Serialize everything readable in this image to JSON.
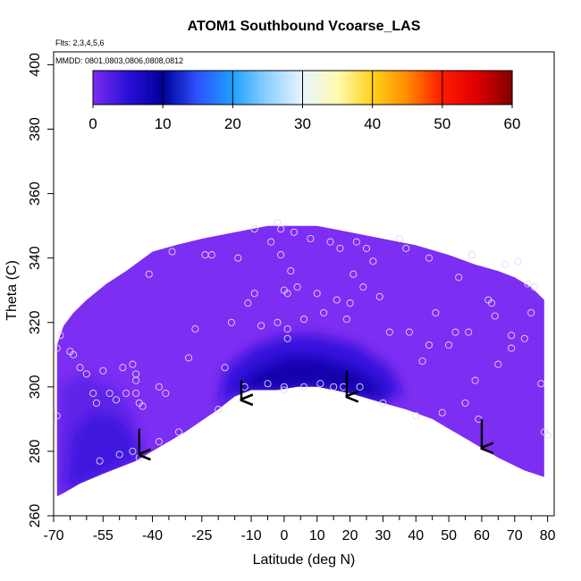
{
  "chart_data": {
    "type": "heatmap",
    "title": "ATOM1 Southbound Vcoarse_LAS",
    "subtitle_flights": "Flts: 2,3,4,5,6",
    "subtitle_dates": "MMDD: 0801,0803,0806,0808,0812",
    "xlabel": "Latitude (deg N)",
    "ylabel": "Theta (C)",
    "xlim": [
      -70,
      82
    ],
    "ylim": [
      260,
      404
    ],
    "x_tick_labels": [
      "-70",
      "-55",
      "-40",
      "-25",
      "-10",
      "0",
      "10",
      "20",
      "30",
      "40",
      "50",
      "60",
      "70",
      "80"
    ],
    "x_ticks": [
      -70,
      -55,
      -40,
      -25,
      -10,
      0,
      10,
      20,
      30,
      40,
      50,
      60,
      70,
      80
    ],
    "x_minor_ticks": [
      -65,
      -60,
      -50,
      -45,
      -35,
      -30,
      -20,
      -15,
      -5,
      5,
      15,
      25,
      35,
      45,
      55,
      65,
      75
    ],
    "y_tick_labels": [
      "260",
      "280",
      "300",
      "320",
      "340",
      "360",
      "380",
      "400"
    ],
    "y_ticks": [
      260,
      280,
      300,
      320,
      340,
      360,
      380,
      400
    ],
    "colorbar": {
      "range": [
        0,
        60
      ],
      "tick_labels": [
        "0",
        "10",
        "20",
        "30",
        "40",
        "50",
        "60"
      ],
      "ticks": [
        0,
        10,
        20,
        30,
        40,
        50,
        60
      ],
      "stops": [
        {
          "v": 0,
          "c": "#7a2cf0"
        },
        {
          "v": 5,
          "c": "#2a10d8"
        },
        {
          "v": 10,
          "c": "#000099"
        },
        {
          "v": 15,
          "c": "#2f52ff"
        },
        {
          "v": 20,
          "c": "#1ea0ff"
        },
        {
          "v": 25,
          "c": "#8fd0ff"
        },
        {
          "v": 30,
          "c": "#e8f5ff"
        },
        {
          "v": 35,
          "c": "#fffab0"
        },
        {
          "v": 40,
          "c": "#ffd21a"
        },
        {
          "v": 45,
          "c": "#ff8a00"
        },
        {
          "v": 50,
          "c": "#ff1a00"
        },
        {
          "v": 55,
          "c": "#dd0000"
        },
        {
          "v": 60,
          "c": "#800000"
        }
      ]
    },
    "colors": {
      "field": "#7c2ef2",
      "field_dark": "#1a0aa8",
      "field_mid": "#4a1de0",
      "marker_stroke": "#e6d6ff",
      "arrow": "#000000",
      "frame": "#000000"
    },
    "domain": {
      "top": [
        [
          -69,
          313
        ],
        [
          -67,
          319
        ],
        [
          -64,
          323
        ],
        [
          -60,
          327
        ],
        [
          -54,
          332
        ],
        [
          -48,
          336
        ],
        [
          -40,
          342
        ],
        [
          -33,
          344
        ],
        [
          -25,
          346
        ],
        [
          -15,
          348
        ],
        [
          -5,
          350
        ],
        [
          0,
          350
        ],
        [
          10,
          350
        ],
        [
          20,
          348
        ],
        [
          30,
          346
        ],
        [
          40,
          344
        ],
        [
          50,
          341
        ],
        [
          58,
          338
        ],
        [
          65,
          336
        ],
        [
          70,
          334
        ],
        [
          75,
          331
        ],
        [
          79,
          327
        ]
      ],
      "bottom": [
        [
          79,
          272
        ],
        [
          73,
          274
        ],
        [
          65,
          278
        ],
        [
          60,
          281
        ],
        [
          50,
          287
        ],
        [
          45,
          290
        ],
        [
          37,
          293
        ],
        [
          30,
          295
        ],
        [
          20,
          298
        ],
        [
          10,
          300
        ],
        [
          4,
          300
        ],
        [
          -2,
          299
        ],
        [
          -10,
          299
        ],
        [
          -15,
          297
        ],
        [
          -20,
          293
        ],
        [
          -30,
          286
        ],
        [
          -40,
          280
        ],
        [
          -45,
          277
        ],
        [
          -55,
          273
        ],
        [
          -62,
          270
        ],
        [
          -67,
          267
        ],
        [
          -69,
          266
        ]
      ]
    },
    "dark_regions": [
      {
        "level": 9,
        "poly": [
          [
            -15,
            298
          ],
          [
            -10,
            304
          ],
          [
            0,
            309
          ],
          [
            10,
            309
          ],
          [
            20,
            306
          ],
          [
            27,
            302
          ],
          [
            30,
            296
          ],
          [
            20,
            298
          ],
          [
            10,
            300
          ],
          [
            4,
            300
          ],
          [
            -2,
            299
          ],
          [
            -10,
            299
          ]
        ]
      },
      {
        "level": 5,
        "poly": [
          [
            -20,
            294
          ],
          [
            -18,
            305
          ],
          [
            -10,
            312
          ],
          [
            0,
            316
          ],
          [
            10,
            316
          ],
          [
            22,
            313
          ],
          [
            32,
            306
          ],
          [
            36,
            298
          ],
          [
            30,
            295
          ],
          [
            20,
            298
          ],
          [
            10,
            300
          ],
          [
            -2,
            299
          ],
          [
            -10,
            299
          ],
          [
            -15,
            297
          ]
        ]
      },
      {
        "level": 4,
        "poly": [
          [
            -66,
            268
          ],
          [
            -64,
            285
          ],
          [
            -58,
            292
          ],
          [
            -50,
            290
          ],
          [
            -45,
            283
          ],
          [
            -44,
            278
          ],
          [
            -55,
            273
          ],
          [
            -62,
            270
          ]
        ]
      },
      {
        "level": 2,
        "poly": [
          [
            -68,
            267
          ],
          [
            -68,
            300
          ],
          [
            -62,
            304
          ],
          [
            -52,
            300
          ],
          [
            -46,
            292
          ],
          [
            -44,
            279
          ],
          [
            -55,
            273
          ],
          [
            -62,
            270
          ]
        ]
      }
    ],
    "observation_points": [
      [
        -69,
        312
      ],
      [
        -69,
        291
      ],
      [
        -68,
        316
      ],
      [
        -65,
        311
      ],
      [
        -64,
        310
      ],
      [
        -62,
        306
      ],
      [
        -60,
        304
      ],
      [
        -58,
        298
      ],
      [
        -57,
        295
      ],
      [
        -56,
        277
      ],
      [
        -55,
        305
      ],
      [
        -53,
        298
      ],
      [
        -51,
        296
      ],
      [
        -50,
        279
      ],
      [
        -49,
        306
      ],
      [
        -48,
        298
      ],
      [
        -46,
        280
      ],
      [
        -46,
        307
      ],
      [
        -45,
        304
      ],
      [
        -45,
        302
      ],
      [
        -45,
        298
      ],
      [
        -44,
        295
      ],
      [
        -44,
        278
      ],
      [
        -43,
        294
      ],
      [
        -41,
        335
      ],
      [
        -38,
        283
      ],
      [
        -38,
        300
      ],
      [
        -36,
        298
      ],
      [
        -34,
        342
      ],
      [
        -32,
        286
      ],
      [
        -29,
        309
      ],
      [
        -27,
        318
      ],
      [
        -24,
        341
      ],
      [
        -22,
        341
      ],
      [
        -20,
        293
      ],
      [
        -18,
        306
      ],
      [
        -16,
        320
      ],
      [
        -14,
        340
      ],
      [
        -12,
        300
      ],
      [
        -11,
        326
      ],
      [
        -9,
        349
      ],
      [
        -9,
        329
      ],
      [
        -7,
        319
      ],
      [
        -5,
        301
      ],
      [
        -4,
        345
      ],
      [
        -2,
        351
      ],
      [
        -2,
        320
      ],
      [
        -1,
        341
      ],
      [
        -1,
        349
      ],
      [
        0,
        299
      ],
      [
        0,
        330
      ],
      [
        0,
        300
      ],
      [
        1,
        315
      ],
      [
        1,
        329
      ],
      [
        1,
        318
      ],
      [
        2,
        336
      ],
      [
        3,
        348
      ],
      [
        4,
        331
      ],
      [
        6,
        300
      ],
      [
        6,
        321
      ],
      [
        8,
        346
      ],
      [
        10,
        329
      ],
      [
        11,
        301
      ],
      [
        12,
        323
      ],
      [
        14,
        345
      ],
      [
        15,
        300
      ],
      [
        16,
        327
      ],
      [
        17,
        343
      ],
      [
        18,
        300
      ],
      [
        19,
        321
      ],
      [
        20,
        326
      ],
      [
        21,
        335
      ],
      [
        22,
        345
      ],
      [
        23,
        300
      ],
      [
        24,
        331
      ],
      [
        25,
        343
      ],
      [
        27,
        339
      ],
      [
        29,
        328
      ],
      [
        30,
        295
      ],
      [
        32,
        317
      ],
      [
        35,
        346
      ],
      [
        37,
        343
      ],
      [
        38,
        317
      ],
      [
        40,
        291
      ],
      [
        42,
        308
      ],
      [
        44,
        313
      ],
      [
        44,
        340
      ],
      [
        46,
        323
      ],
      [
        48,
        292
      ],
      [
        50,
        313
      ],
      [
        52,
        317
      ],
      [
        53,
        334
      ],
      [
        55,
        295
      ],
      [
        56,
        317
      ],
      [
        57,
        341
      ],
      [
        58,
        302
      ],
      [
        59,
        290
      ],
      [
        62,
        327
      ],
      [
        63,
        326
      ],
      [
        64,
        322
      ],
      [
        65,
        307
      ],
      [
        67,
        338
      ],
      [
        69,
        316
      ],
      [
        69,
        312
      ],
      [
        71,
        339
      ],
      [
        73,
        315
      ],
      [
        74,
        332
      ],
      [
        75,
        323
      ],
      [
        76,
        331
      ],
      [
        78,
        301
      ],
      [
        79,
        286
      ],
      [
        80,
        285
      ]
    ],
    "arrows": [
      {
        "x": -44,
        "y_start": 287,
        "y_end": 279
      },
      {
        "x": -13,
        "y_start": 302,
        "y_end": 296
      },
      {
        "x": 19,
        "y_start": 305,
        "y_end": 297
      },
      {
        "x": 60,
        "y_start": 290,
        "y_end": 281
      }
    ]
  }
}
